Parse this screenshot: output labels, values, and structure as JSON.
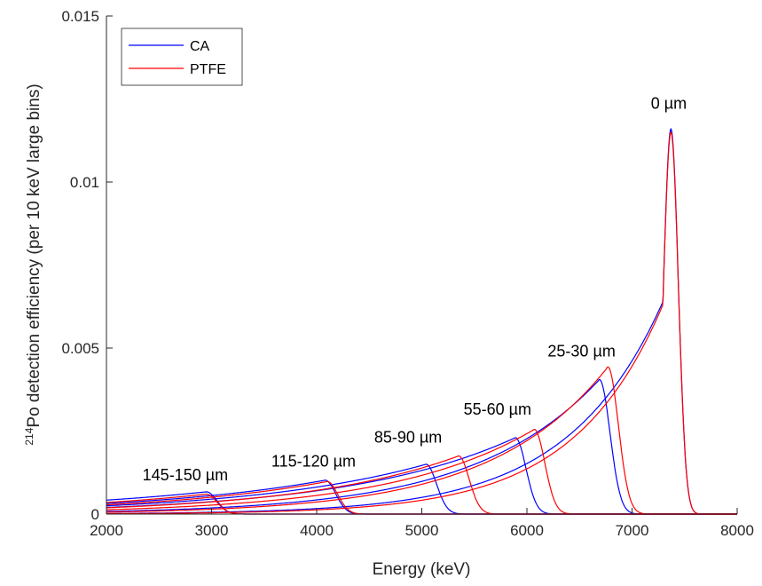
{
  "chart_data": {
    "type": "line",
    "title": "",
    "xlabel": "Energy (keV)",
    "ylabel_sup": "214",
    "ylabel": "Po detection efficiency (per 10 keV large bins)",
    "xlim": [
      2000,
      8000
    ],
    "ylim": [
      0,
      0.015
    ],
    "xticks": [
      2000,
      3000,
      4000,
      5000,
      6000,
      7000,
      8000
    ],
    "xtick_labels": [
      "2000",
      "3000",
      "4000",
      "5000",
      "6000",
      "7000",
      "8000"
    ],
    "yticks": [
      0,
      0.005,
      0.01,
      0.015
    ],
    "ytick_labels": [
      "0",
      "0.005",
      "0.01",
      "0.015"
    ],
    "grid": false,
    "legend_position": "top-left",
    "series": [
      {
        "name": "CA",
        "color": "#0000ff",
        "curves": [
          {
            "thickness": "0 µm",
            "peak_energy": 7370,
            "peak_value": 0.0116,
            "value_at_2000": 3e-05
          },
          {
            "thickness": "25-30 µm",
            "peak_energy": 6690,
            "peak_value": 0.00405,
            "value_at_2000": 8e-05
          },
          {
            "thickness": "55-60 µm",
            "peak_energy": 5890,
            "peak_value": 0.0023,
            "value_at_2000": 0.0002
          },
          {
            "thickness": "85-90 µm",
            "peak_energy": 5040,
            "peak_value": 0.0015,
            "value_at_2000": 0.00025
          },
          {
            "thickness": "115-120 µm",
            "peak_energy": 4080,
            "peak_value": 0.00102,
            "value_at_2000": 0.00032
          },
          {
            "thickness": "145-150 µm",
            "peak_energy": 2950,
            "peak_value": 0.00067,
            "value_at_2000": 0.00042
          }
        ]
      },
      {
        "name": "PTFE",
        "color": "#ff0000",
        "curves": [
          {
            "thickness": "0 µm",
            "peak_energy": 7370,
            "peak_value": 0.0115,
            "value_at_2000": 2e-05
          },
          {
            "thickness": "25-30 µm",
            "peak_energy": 6770,
            "peak_value": 0.00443,
            "value_at_2000": 6e-05
          },
          {
            "thickness": "55-60 µm",
            "peak_energy": 6070,
            "peak_value": 0.00255,
            "value_at_2000": 0.00013
          },
          {
            "thickness": "85-90 µm",
            "peak_energy": 5350,
            "peak_value": 0.00175,
            "value_at_2000": 0.00019
          },
          {
            "thickness": "115-120 µm",
            "peak_energy": 4100,
            "peak_value": 0.00098,
            "value_at_2000": 0.00028
          },
          {
            "thickness": "145-150 µm",
            "peak_energy": 2950,
            "peak_value": 0.0006,
            "value_at_2000": 0.00035
          }
        ]
      }
    ],
    "annotations": [
      {
        "text": "0 µm",
        "x": 7350,
        "y": 0.0122
      },
      {
        "text": "25-30 µm",
        "x": 6520,
        "y": 0.00475
      },
      {
        "text": "55-60 µm",
        "x": 5720,
        "y": 0.003
      },
      {
        "text": "85-90 µm",
        "x": 4870,
        "y": 0.00215
      },
      {
        "text": "115-120 µm",
        "x": 3970,
        "y": 0.00143
      },
      {
        "text": "145-150 µm",
        "x": 2750,
        "y": 0.00102
      }
    ]
  }
}
